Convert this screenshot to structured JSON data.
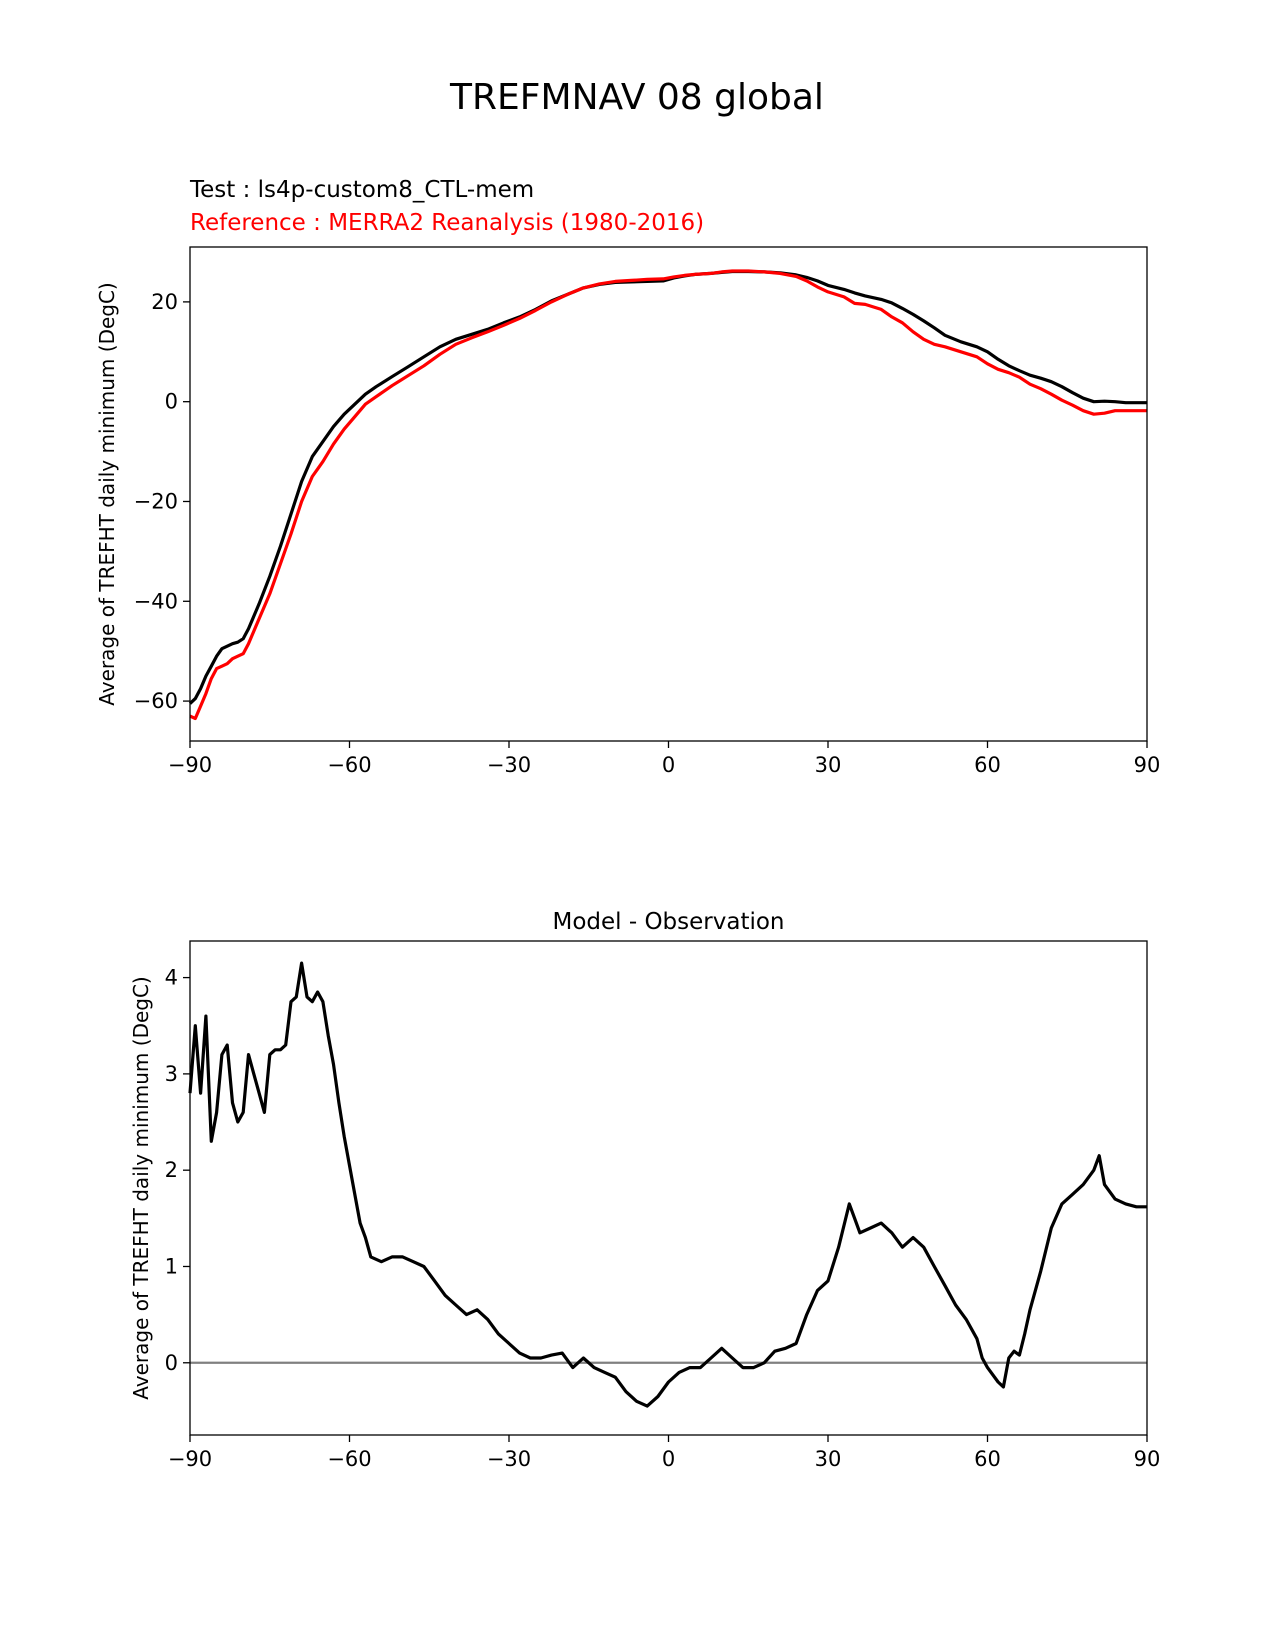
{
  "figure": {
    "suptitle": "TREFMNAV 08 global",
    "test_label": "Test : ls4p-custom8_CTL-mem",
    "ref_label": "Reference : MERRA2 Reanalysis (1980-2016)",
    "ref_color": "#ff0000",
    "test_color": "#000000"
  },
  "chart_data": [
    {
      "type": "line",
      "xlabel": "",
      "ylabel": "Average of TREFHT daily minimum (DegC)",
      "xlim": [
        -90,
        90
      ],
      "ylim": [
        -68,
        31
      ],
      "xticks": [
        -90,
        -60,
        -30,
        0,
        30,
        60,
        90
      ],
      "yticks": [
        -60,
        -40,
        -20,
        0,
        20
      ],
      "series": [
        {
          "name": "Test : ls4p-custom8_CTL-mem",
          "color": "#000000",
          "x": [
            -90,
            -89,
            -88,
            -87,
            -86,
            -85,
            -84,
            -83,
            -82,
            -81,
            -80,
            -79,
            -78,
            -77,
            -75,
            -73,
            -71,
            -69,
            -67,
            -66,
            -65,
            -63,
            -61,
            -59,
            -57,
            -55,
            -52,
            -49,
            -46,
            -43,
            -40,
            -37,
            -34,
            -31,
            -28,
            -25,
            -22,
            -19,
            -16,
            -13,
            -10,
            -7,
            -4,
            -1,
            1,
            3,
            5,
            8,
            10,
            12,
            15,
            18,
            21,
            24,
            26,
            28,
            30,
            33,
            35,
            37,
            40,
            42,
            44,
            46,
            48,
            50,
            52,
            55,
            58,
            60,
            62,
            64,
            66,
            68,
            70,
            72,
            74,
            76,
            78,
            80,
            82,
            84,
            86,
            88,
            90
          ],
          "y": [
            -60.5,
            -59.5,
            -57.5,
            -55,
            -53,
            -51,
            -49.5,
            -49,
            -48.5,
            -48.2,
            -47.5,
            -45.5,
            -43,
            -40.5,
            -35,
            -29,
            -22.5,
            -16,
            -11,
            -9.5,
            -8,
            -5,
            -2.5,
            -0.5,
            1.5,
            3,
            5,
            7,
            9,
            11,
            12.5,
            13.5,
            14.5,
            15.8,
            17,
            18.5,
            20.2,
            21.5,
            22.8,
            23.5,
            23.9,
            24,
            24.1,
            24.2,
            24.8,
            25.2,
            25.5,
            25.7,
            25.9,
            26.1,
            26.1,
            26,
            25.8,
            25.4,
            24.9,
            24.2,
            23.3,
            22.5,
            21.8,
            21.2,
            20.5,
            19.8,
            18.7,
            17.5,
            16.2,
            14.8,
            13.3,
            12,
            11,
            10,
            8.5,
            7.2,
            6.2,
            5.3,
            4.7,
            4,
            3,
            1.8,
            0.7,
            0,
            0.1,
            0,
            -0.2,
            -0.2,
            -0.2
          ]
        },
        {
          "name": "Reference : MERRA2 Reanalysis (1980-2016)",
          "color": "#ff0000",
          "x": [
            -90,
            -89,
            -88,
            -87,
            -86,
            -85,
            -84,
            -83,
            -82,
            -81,
            -80,
            -79,
            -78,
            -77,
            -75,
            -73,
            -71,
            -69,
            -67,
            -66,
            -65,
            -63,
            -61,
            -59,
            -57,
            -55,
            -52,
            -49,
            -46,
            -43,
            -40,
            -37,
            -34,
            -31,
            -28,
            -25,
            -22,
            -19,
            -16,
            -13,
            -10,
            -7,
            -4,
            -1,
            1,
            3,
            5,
            8,
            10,
            12,
            15,
            18,
            21,
            24,
            26,
            28,
            30,
            33,
            35,
            37,
            40,
            42,
            44,
            46,
            48,
            50,
            52,
            55,
            58,
            60,
            62,
            64,
            66,
            68,
            70,
            72,
            74,
            76,
            78,
            80,
            82,
            84,
            86,
            88,
            90
          ],
          "y": [
            -63,
            -63.5,
            -61,
            -58.5,
            -55.5,
            -53.5,
            -53,
            -52.5,
            -51.5,
            -51,
            -50.5,
            -48.5,
            -46,
            -43.5,
            -38.5,
            -32.5,
            -26.5,
            -20,
            -15,
            -13.5,
            -12,
            -8.5,
            -5.5,
            -3,
            -0.5,
            1,
            3.2,
            5.2,
            7.2,
            9.5,
            11.5,
            12.8,
            14,
            15.3,
            16.7,
            18.3,
            20,
            21.5,
            22.8,
            23.6,
            24.1,
            24.3,
            24.5,
            24.6,
            25,
            25.3,
            25.5,
            25.7,
            26,
            26.2,
            26.2,
            26,
            25.7,
            25.1,
            24.2,
            23,
            22,
            21,
            19.7,
            19.5,
            18.5,
            17,
            15.8,
            14,
            12.5,
            11.5,
            11,
            10,
            9,
            7.6,
            6.5,
            5.8,
            4.9,
            3.5,
            2.6,
            1.5,
            0.3,
            -0.7,
            -1.8,
            -2.5,
            -2.3,
            -1.8,
            -1.8,
            -1.8,
            -1.8
          ]
        }
      ]
    },
    {
      "type": "line",
      "title": "Model - Observation",
      "xlabel": "",
      "ylabel": "Average of TREFHT daily minimum (DegC)",
      "xlim": [
        -90,
        90
      ],
      "ylim": [
        -0.75,
        4.38
      ],
      "xticks": [
        -90,
        -60,
        -30,
        0,
        30,
        60,
        90
      ],
      "yticks": [
        0,
        1,
        2,
        3,
        4
      ],
      "zero_line_color": "#808080",
      "series": [
        {
          "name": "Model - Observation",
          "color": "#000000",
          "x": [
            -90,
            -89,
            -88,
            -87,
            -86,
            -85,
            -84,
            -83,
            -82,
            -81,
            -80,
            -79,
            -78,
            -77,
            -76,
            -75,
            -74,
            -73,
            -72,
            -71,
            -70,
            -69,
            -68,
            -67,
            -66,
            -65,
            -64,
            -63,
            -62,
            -61,
            -60,
            -59,
            -58,
            -57,
            -56,
            -54,
            -52,
            -50,
            -48,
            -46,
            -44,
            -42,
            -40,
            -38,
            -36,
            -34,
            -32,
            -30,
            -28,
            -26,
            -24,
            -22,
            -20,
            -18,
            -16,
            -14,
            -12,
            -10,
            -8,
            -6,
            -4,
            -2,
            0,
            2,
            4,
            6,
            8,
            10,
            12,
            14,
            16,
            18,
            20,
            22,
            24,
            26,
            28,
            30,
            32,
            34,
            35,
            36,
            38,
            40,
            42,
            44,
            46,
            48,
            50,
            52,
            54,
            56,
            58,
            59,
            60,
            62,
            63,
            64,
            65,
            66,
            67,
            68,
            70,
            72,
            74,
            76,
            78,
            80,
            81,
            82,
            84,
            86,
            88,
            90
          ],
          "y": [
            2.8,
            3.5,
            2.8,
            3.6,
            2.3,
            2.6,
            3.2,
            3.3,
            2.7,
            2.5,
            2.6,
            3.2,
            3.0,
            2.8,
            2.6,
            3.2,
            3.25,
            3.25,
            3.3,
            3.75,
            3.8,
            4.15,
            3.8,
            3.75,
            3.85,
            3.75,
            3.4,
            3.1,
            2.7,
            2.35,
            2.05,
            1.75,
            1.45,
            1.3,
            1.1,
            1.05,
            1.1,
            1.1,
            1.05,
            1.0,
            0.85,
            0.7,
            0.6,
            0.5,
            0.55,
            0.45,
            0.3,
            0.2,
            0.1,
            0.05,
            0.05,
            0.08,
            0.1,
            -0.05,
            0.05,
            -0.05,
            -0.1,
            -0.15,
            -0.3,
            -0.4,
            -0.45,
            -0.35,
            -0.2,
            -0.1,
            -0.05,
            -0.05,
            0.05,
            0.15,
            0.05,
            -0.05,
            -0.05,
            0.0,
            0.12,
            0.15,
            0.2,
            0.5,
            0.75,
            0.85,
            1.2,
            1.65,
            1.5,
            1.35,
            1.4,
            1.45,
            1.35,
            1.2,
            1.3,
            1.2,
            1.0,
            0.8,
            0.6,
            0.45,
            0.25,
            0.05,
            -0.05,
            -0.2,
            -0.25,
            0.05,
            0.12,
            0.08,
            0.3,
            0.55,
            0.95,
            1.4,
            1.65,
            1.75,
            1.85,
            2.0,
            2.15,
            1.85,
            1.7,
            1.65,
            1.62,
            1.62
          ]
        }
      ]
    }
  ]
}
